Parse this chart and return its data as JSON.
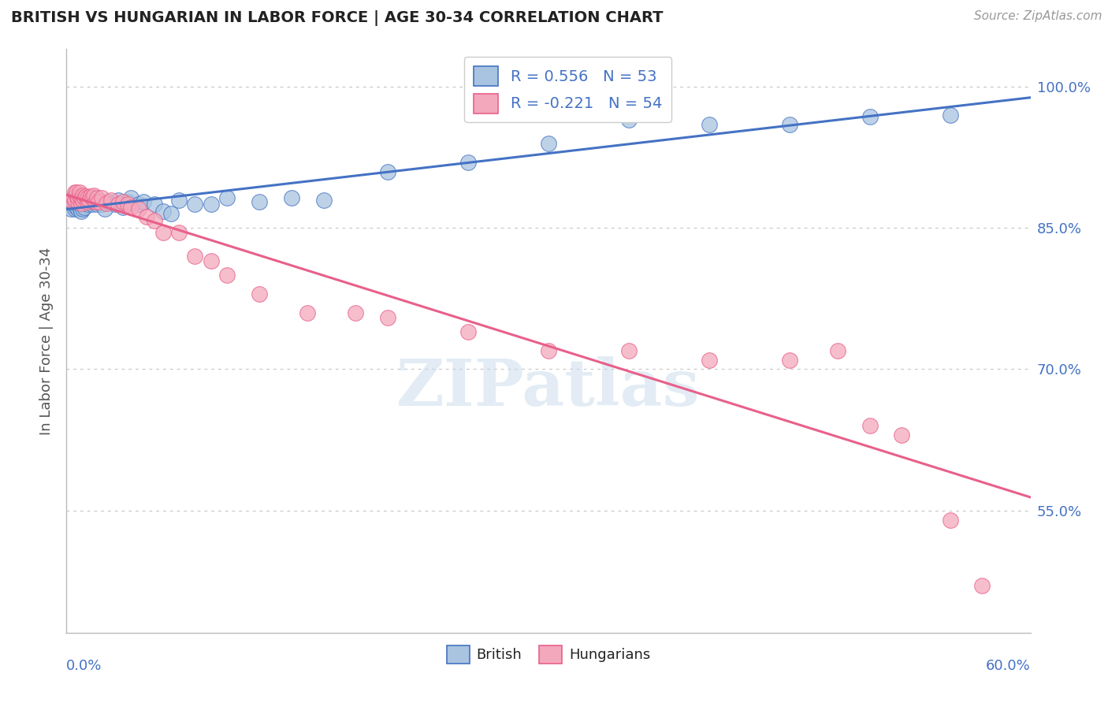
{
  "title": "BRITISH VS HUNGARIAN IN LABOR FORCE | AGE 30-34 CORRELATION CHART",
  "source_text": "Source: ZipAtlas.com",
  "ylabel": "In Labor Force | Age 30-34",
  "xlim": [
    0.0,
    0.6
  ],
  "ylim": [
    0.42,
    1.04
  ],
  "british_color": "#a8c4e0",
  "hungarian_color": "#f4a8bc",
  "british_line_color": "#4472c4",
  "hungarian_line_color": "#e8608a",
  "background_color": "#ffffff",
  "grid_color": "#c8c8c8",
  "title_color": "#222222",
  "axis_label_color": "#4472c4",
  "dpi": 100,
  "figsize": [
    14.06,
    8.92
  ],
  "british_x": [
    0.003,
    0.004,
    0.005,
    0.005,
    0.006,
    0.006,
    0.007,
    0.007,
    0.008,
    0.008,
    0.009,
    0.009,
    0.01,
    0.01,
    0.011,
    0.012,
    0.013,
    0.013,
    0.014,
    0.015,
    0.016,
    0.017,
    0.018,
    0.019,
    0.02,
    0.022,
    0.024,
    0.026,
    0.03,
    0.032,
    0.035,
    0.038,
    0.04,
    0.045,
    0.048,
    0.055,
    0.06,
    0.065,
    0.07,
    0.08,
    0.09,
    0.1,
    0.12,
    0.14,
    0.16,
    0.2,
    0.25,
    0.3,
    0.35,
    0.4,
    0.45,
    0.5,
    0.55
  ],
  "british_y": [
    0.87,
    0.875,
    0.87,
    0.88,
    0.872,
    0.882,
    0.87,
    0.875,
    0.872,
    0.878,
    0.868,
    0.875,
    0.87,
    0.878,
    0.872,
    0.882,
    0.88,
    0.875,
    0.88,
    0.878,
    0.875,
    0.882,
    0.878,
    0.875,
    0.88,
    0.875,
    0.87,
    0.878,
    0.875,
    0.88,
    0.872,
    0.878,
    0.882,
    0.875,
    0.878,
    0.875,
    0.868,
    0.865,
    0.88,
    0.875,
    0.875,
    0.882,
    0.878,
    0.882,
    0.88,
    0.91,
    0.92,
    0.94,
    0.965,
    0.96,
    0.96,
    0.968,
    0.97
  ],
  "hungarian_x": [
    0.003,
    0.004,
    0.005,
    0.005,
    0.006,
    0.006,
    0.007,
    0.007,
    0.008,
    0.008,
    0.009,
    0.009,
    0.01,
    0.01,
    0.011,
    0.012,
    0.013,
    0.013,
    0.014,
    0.015,
    0.016,
    0.017,
    0.018,
    0.019,
    0.02,
    0.022,
    0.025,
    0.028,
    0.032,
    0.035,
    0.038,
    0.04,
    0.045,
    0.05,
    0.055,
    0.06,
    0.07,
    0.08,
    0.09,
    0.1,
    0.12,
    0.15,
    0.18,
    0.2,
    0.25,
    0.3,
    0.35,
    0.4,
    0.45,
    0.48,
    0.5,
    0.52,
    0.55,
    0.57
  ],
  "hungarian_y": [
    0.88,
    0.882,
    0.888,
    0.88,
    0.885,
    0.888,
    0.878,
    0.882,
    0.884,
    0.888,
    0.876,
    0.882,
    0.88,
    0.885,
    0.882,
    0.884,
    0.878,
    0.882,
    0.88,
    0.884,
    0.882,
    0.885,
    0.878,
    0.882,
    0.878,
    0.882,
    0.876,
    0.88,
    0.875,
    0.878,
    0.875,
    0.872,
    0.87,
    0.862,
    0.858,
    0.845,
    0.845,
    0.82,
    0.815,
    0.8,
    0.78,
    0.76,
    0.76,
    0.755,
    0.74,
    0.72,
    0.72,
    0.71,
    0.71,
    0.72,
    0.64,
    0.63,
    0.54,
    0.47
  ]
}
